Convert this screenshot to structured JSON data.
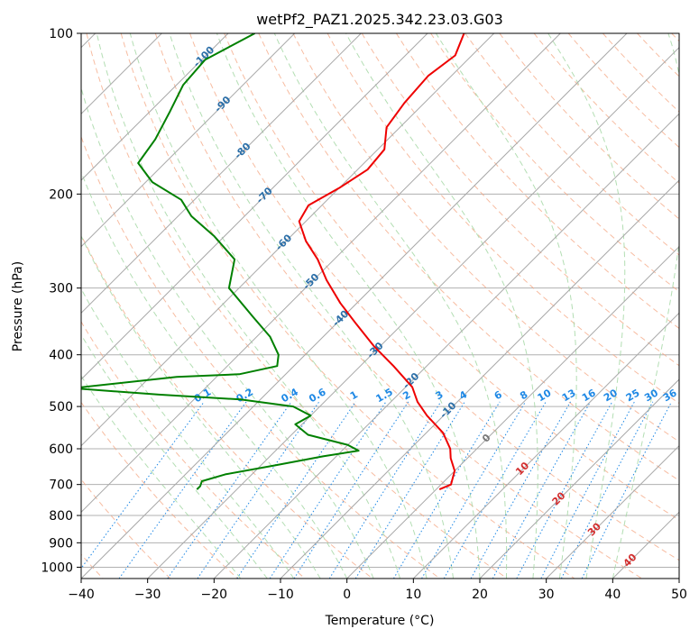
{
  "chart_data": {
    "type": "skew-t",
    "title": "wetPf2_PAZ1.2025.342.23.03.G03",
    "xlabel": "Temperature (°C)",
    "ylabel": "Pressure (hPa)",
    "xlim": [
      -40,
      50
    ],
    "ylim": [
      1050,
      100
    ],
    "x_ticks": [
      -40,
      -30,
      -20,
      -10,
      0,
      10,
      20,
      30,
      40,
      50
    ],
    "y_ticks": [
      100,
      200,
      300,
      400,
      500,
      600,
      700,
      800,
      900,
      1000
    ],
    "colors": {
      "temperature": "#ee0000",
      "dewpoint": "#008000",
      "isotherm": "#999999",
      "dry_adiabat": "#f4a582",
      "moist_adiabat": "#a6d8a6",
      "mixing_ratio": "#1e88e5",
      "isotherm_label_cold": "#2c6fa8",
      "isotherm_label_warm": "#d32f2f"
    },
    "isotherm_labels": [
      {
        "t": -100,
        "p": 110
      },
      {
        "t": -90,
        "p": 135
      },
      {
        "t": -80,
        "p": 165
      },
      {
        "t": -70,
        "p": 200
      },
      {
        "t": -60,
        "p": 245
      },
      {
        "t": -50,
        "p": 290
      },
      {
        "t": -40,
        "p": 340
      },
      {
        "t": -30,
        "p": 390
      },
      {
        "t": -20,
        "p": 445
      },
      {
        "t": -10,
        "p": 505
      },
      {
        "t": 0,
        "p": 570
      },
      {
        "t": 10,
        "p": 650
      },
      {
        "t": 20,
        "p": 740
      },
      {
        "t": 30,
        "p": 845
      },
      {
        "t": 40,
        "p": 965
      }
    ],
    "mixing_ratio_values": [
      "0.1",
      "0.2",
      "0.4",
      "0.6",
      "1",
      "1.5",
      "2",
      "3",
      "4",
      "6",
      "8",
      "10",
      "13",
      "16",
      "20",
      "25",
      "30",
      "36"
    ],
    "mixing_ratio_label_pressure": 490,
    "series": [
      {
        "name": "Temperature",
        "points": [
          {
            "p": 100,
            "t": -64.5
          },
          {
            "p": 110,
            "t": -62.5
          },
          {
            "p": 120,
            "t": -63.5
          },
          {
            "p": 135,
            "t": -63.0
          },
          {
            "p": 150,
            "t": -62.0
          },
          {
            "p": 165,
            "t": -59.0
          },
          {
            "p": 180,
            "t": -58.5
          },
          {
            "p": 195,
            "t": -60.0
          },
          {
            "p": 210,
            "t": -62.0
          },
          {
            "p": 225,
            "t": -61.0
          },
          {
            "p": 245,
            "t": -57.0
          },
          {
            "p": 265,
            "t": -52.5
          },
          {
            "p": 290,
            "t": -48.0
          },
          {
            "p": 320,
            "t": -42.5
          },
          {
            "p": 350,
            "t": -37.0
          },
          {
            "p": 385,
            "t": -31.0
          },
          {
            "p": 420,
            "t": -25.0
          },
          {
            "p": 460,
            "t": -19.0
          },
          {
            "p": 490,
            "t": -16.0
          },
          {
            "p": 520,
            "t": -12.5
          },
          {
            "p": 560,
            "t": -7.5
          },
          {
            "p": 600,
            "t": -4.0
          },
          {
            "p": 625,
            "t": -2.5
          },
          {
            "p": 660,
            "t": 0.0
          },
          {
            "p": 700,
            "t": 1.5
          },
          {
            "p": 715,
            "t": 0.5
          }
        ]
      },
      {
        "name": "Dewpoint",
        "points": [
          {
            "p": 100,
            "t": -96.0
          },
          {
            "p": 112,
            "t": -99.5
          },
          {
            "p": 125,
            "t": -99.0
          },
          {
            "p": 140,
            "t": -97.0
          },
          {
            "p": 158,
            "t": -95.0
          },
          {
            "p": 175,
            "t": -94.0
          },
          {
            "p": 190,
            "t": -89.0
          },
          {
            "p": 205,
            "t": -82.0
          },
          {
            "p": 220,
            "t": -78.0
          },
          {
            "p": 240,
            "t": -71.5
          },
          {
            "p": 265,
            "t": -65.0
          },
          {
            "p": 300,
            "t": -61.5
          },
          {
            "p": 340,
            "t": -53.5
          },
          {
            "p": 370,
            "t": -48.0
          },
          {
            "p": 400,
            "t": -44.0
          },
          {
            "p": 420,
            "t": -42.5
          },
          {
            "p": 435,
            "t": -47.0
          },
          {
            "p": 440,
            "t": -56.0
          },
          {
            "p": 462,
            "t": -70.0
          },
          {
            "p": 475,
            "t": -56.0
          },
          {
            "p": 485,
            "t": -43.0
          },
          {
            "p": 500,
            "t": -34.0
          },
          {
            "p": 520,
            "t": -30.0
          },
          {
            "p": 540,
            "t": -31.0
          },
          {
            "p": 565,
            "t": -27.5
          },
          {
            "p": 590,
            "t": -20.0
          },
          {
            "p": 605,
            "t": -17.5
          },
          {
            "p": 620,
            "t": -22.0
          },
          {
            "p": 645,
            "t": -28.0
          },
          {
            "p": 670,
            "t": -34.0
          },
          {
            "p": 690,
            "t": -36.5
          },
          {
            "p": 705,
            "t": -36.0
          },
          {
            "p": 715,
            "t": -36.0
          }
        ]
      }
    ]
  }
}
